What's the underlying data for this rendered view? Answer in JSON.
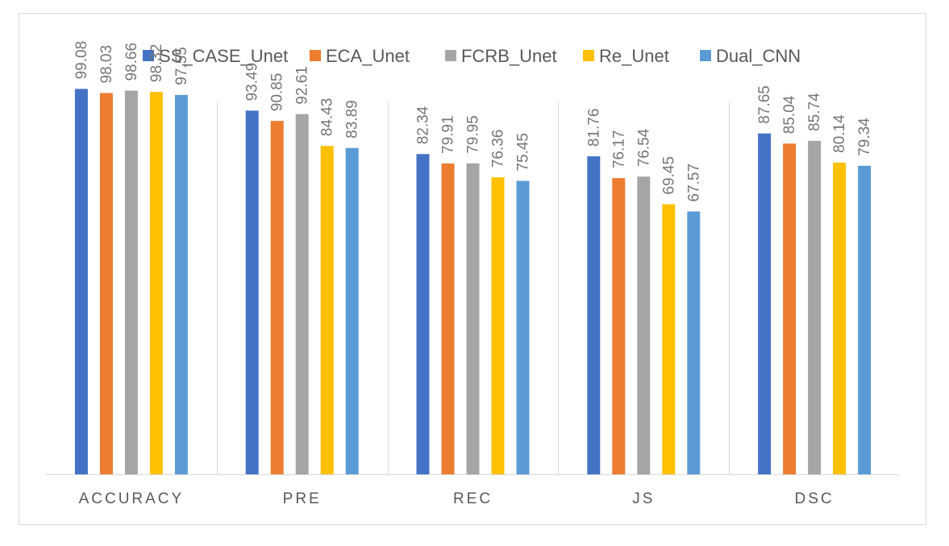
{
  "chart_data": {
    "type": "bar",
    "title": "",
    "xlabel": "",
    "ylabel": "",
    "ylim": [
      0,
      100
    ],
    "grid": false,
    "legend_position": "top",
    "categories": [
      "ACCURACY",
      "PRE",
      "REC",
      "JS",
      "DSC"
    ],
    "series": [
      {
        "name": "SS_CASE_Unet",
        "color": "#4472C4",
        "values": [
          99.08,
          93.49,
          82.34,
          81.76,
          87.65
        ],
        "labels": [
          "99.08",
          "93.49",
          "82.34",
          "81.76",
          "87.65"
        ]
      },
      {
        "name": "ECA_Unet",
        "color": "#ED7D31",
        "values": [
          98.03,
          90.85,
          79.91,
          76.17,
          85.04
        ],
        "labels": [
          "98.03",
          "90.85",
          "79.91",
          "76.17",
          "85.04"
        ]
      },
      {
        "name": "FCRB_Unet",
        "color": "#A5A5A5",
        "values": [
          98.66,
          92.61,
          79.95,
          76.54,
          85.74
        ],
        "labels": [
          "98.66",
          "92.61",
          "79.95",
          "76.54",
          "85.74"
        ]
      },
      {
        "name": "Re_Unet",
        "color": "#FFC000",
        "values": [
          98.32,
          84.43,
          76.36,
          69.45,
          80.14
        ],
        "labels": [
          "98.32",
          "84.43",
          "76.36",
          "69.45",
          "80.14"
        ]
      },
      {
        "name": "Dual_CNN",
        "color": "#5B9BD5",
        "values": [
          97.55,
          83.89,
          75.45,
          67.57,
          79.34
        ],
        "labels": [
          "97.55",
          "83.89",
          "75.45",
          "67.57",
          "79.34"
        ]
      }
    ]
  }
}
